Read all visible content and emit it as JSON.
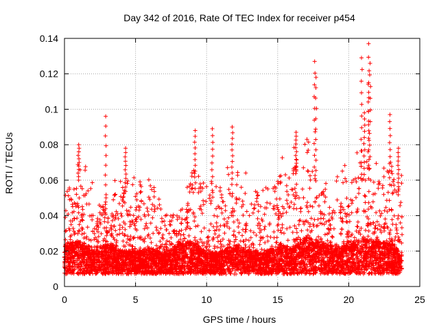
{
  "chart_data": {
    "type": "scatter",
    "title": "Day 342 of 2016, Rate Of TEC Index for receiver p454",
    "xlabel": "GPS time / hours",
    "ylabel": "ROTI / TECUs",
    "xlim": [
      0,
      25
    ],
    "ylim": [
      0,
      0.14
    ],
    "x_ticks": [
      0,
      5,
      10,
      15,
      20,
      25
    ],
    "x_tick_labels": [
      "0",
      "5",
      "10",
      "15",
      "20",
      "25"
    ],
    "y_ticks": [
      0,
      0.02,
      0.04,
      0.06,
      0.08,
      0.1,
      0.12,
      0.14
    ],
    "y_tick_labels": [
      "0",
      "0.02",
      "0.04",
      "0.06",
      "0.08",
      "0.1",
      "0.12",
      "0.14"
    ],
    "grid": true,
    "marker": "+",
    "series": [
      {
        "name": "ROTI",
        "color": "#ff0000",
        "data_extent": {
          "x_start": 0.0,
          "x_end": 23.75
        },
        "notable_points": [
          {
            "x": 2.9,
            "y": 0.096
          },
          {
            "x": 17.6,
            "y": 0.127
          },
          {
            "x": 17.7,
            "y": 0.118
          },
          {
            "x": 20.9,
            "y": 0.129
          },
          {
            "x": 21.4,
            "y": 0.137
          },
          {
            "x": 21.5,
            "y": 0.126
          },
          {
            "x": 21.4,
            "y": 0.115
          },
          {
            "x": 21.1,
            "y": 0.098
          },
          {
            "x": 22.9,
            "y": 0.097
          },
          {
            "x": 9.2,
            "y": 0.088
          },
          {
            "x": 10.4,
            "y": 0.089
          },
          {
            "x": 11.8,
            "y": 0.09
          },
          {
            "x": 1.0,
            "y": 0.08
          },
          {
            "x": 4.3,
            "y": 0.078
          },
          {
            "x": 16.3,
            "y": 0.087
          },
          {
            "x": 23.5,
            "y": 0.078
          }
        ],
        "envelope_hours": [
          0,
          1,
          2,
          3,
          4,
          5,
          6,
          7,
          8,
          9,
          10,
          11,
          12,
          13,
          14,
          15,
          16,
          17,
          18,
          19,
          20,
          21,
          22,
          23,
          23.75
        ],
        "envelope_upper": [
          0.055,
          0.075,
          0.06,
          0.05,
          0.068,
          0.065,
          0.062,
          0.045,
          0.04,
          0.07,
          0.065,
          0.06,
          0.075,
          0.065,
          0.062,
          0.07,
          0.08,
          0.085,
          0.07,
          0.06,
          0.072,
          0.08,
          0.07,
          0.072,
          0.065
        ],
        "envelope_typical": [
          0.02,
          0.022,
          0.018,
          0.02,
          0.017,
          0.016,
          0.018,
          0.015,
          0.02,
          0.022,
          0.015,
          0.016,
          0.02,
          0.016,
          0.015,
          0.02,
          0.018,
          0.024,
          0.022,
          0.018,
          0.02,
          0.024,
          0.022,
          0.02,
          0.015
        ],
        "floor": 0.003
      }
    ]
  }
}
